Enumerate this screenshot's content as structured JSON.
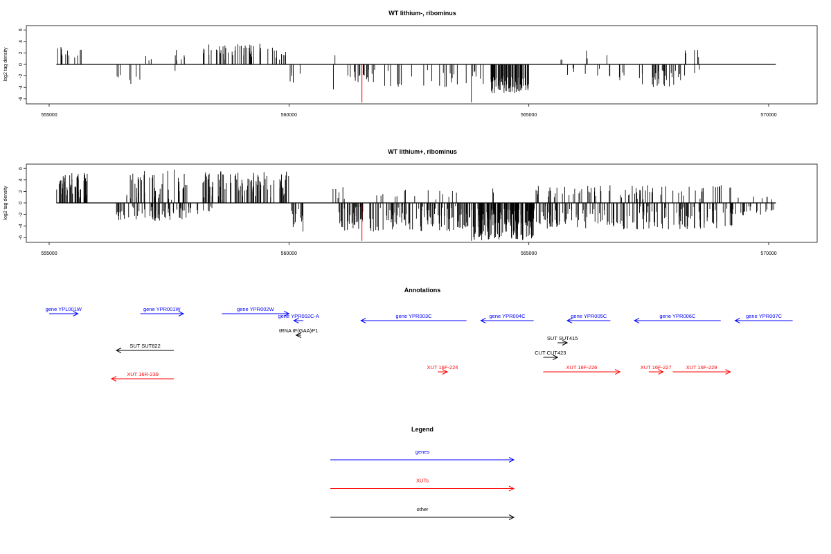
{
  "chart_data": [
    {
      "type": "bar",
      "title": "WT lithium-, ribominus",
      "ylabel": "log2 tag density",
      "xlim": [
        555000,
        570000
      ],
      "ylim": [
        -6,
        6
      ],
      "xticks": [
        "555000",
        "560000",
        "565000",
        "570000"
      ],
      "yticks": [
        "6",
        "4",
        "2",
        "0",
        "-2",
        "-4",
        "-6"
      ],
      "baseline_range": [
        555150,
        570150
      ],
      "highlight_color": "#ff0000",
      "highlights": [
        {
          "x": 561520,
          "y": -6.6
        },
        {
          "x": 563800,
          "y": -6.6
        }
      ],
      "clusters": [
        {
          "start": 555150,
          "end": 555300,
          "sign": 1,
          "min": 1.0,
          "max": 3.0,
          "count": 7
        },
        {
          "start": 555300,
          "end": 555700,
          "sign": 1,
          "min": 0.5,
          "max": 2.8,
          "count": 7
        },
        {
          "start": 556400,
          "end": 556500,
          "sign": -1,
          "min": 1.5,
          "max": 3.0,
          "count": 3
        },
        {
          "start": 556550,
          "end": 556900,
          "sign": -1,
          "min": 1.5,
          "max": 3.6,
          "count": 4
        },
        {
          "start": 556800,
          "end": 557200,
          "sign": 1,
          "min": 0.5,
          "max": 1.6,
          "count": 3
        },
        {
          "start": 557400,
          "end": 558000,
          "sign": 1,
          "min": 0.6,
          "max": 2.6,
          "count": 6
        },
        {
          "start": 557600,
          "end": 557700,
          "sign": -1,
          "min": 1.0,
          "max": 1.6,
          "count": 1
        },
        {
          "start": 558200,
          "end": 559700,
          "sign": 1,
          "min": 0.8,
          "max": 3.6,
          "count": 45
        },
        {
          "start": 559700,
          "end": 560000,
          "sign": 1,
          "min": 0.8,
          "max": 2.6,
          "count": 8
        },
        {
          "start": 560000,
          "end": 560250,
          "sign": -1,
          "min": 0.6,
          "max": 3.2,
          "count": 5
        },
        {
          "start": 560900,
          "end": 561000,
          "sign": 1,
          "min": 1.0,
          "max": 1.6,
          "count": 1
        },
        {
          "start": 560900,
          "end": 561000,
          "sign": -1,
          "min": 3.5,
          "max": 4.6,
          "count": 1
        },
        {
          "start": 561200,
          "end": 561800,
          "sign": -1,
          "min": 0.8,
          "max": 3.2,
          "count": 18
        },
        {
          "start": 561600,
          "end": 563900,
          "sign": -1,
          "min": 0.5,
          "max": 4.0,
          "count": 22
        },
        {
          "start": 563800,
          "end": 564200,
          "sign": -1,
          "min": 1.0,
          "max": 3.6,
          "count": 6
        },
        {
          "start": 564200,
          "end": 565000,
          "sign": -1,
          "min": 2.0,
          "max": 5.0,
          "count": 80
        },
        {
          "start": 565650,
          "end": 565700,
          "sign": 1,
          "min": 0.6,
          "max": 1.0,
          "count": 2
        },
        {
          "start": 565700,
          "end": 566500,
          "sign": -1,
          "min": 0.5,
          "max": 2.0,
          "count": 6
        },
        {
          "start": 566100,
          "end": 566800,
          "sign": 1,
          "min": 1.0,
          "max": 2.6,
          "count": 3
        },
        {
          "start": 566600,
          "end": 567000,
          "sign": -1,
          "min": 0.5,
          "max": 3.6,
          "count": 6
        },
        {
          "start": 567300,
          "end": 568200,
          "sign": -1,
          "min": 1.0,
          "max": 4.0,
          "count": 30
        },
        {
          "start": 568200,
          "end": 568600,
          "sign": 1,
          "min": 0.6,
          "max": 2.8,
          "count": 5
        },
        {
          "start": 568200,
          "end": 568650,
          "sign": -1,
          "min": 0.5,
          "max": 2.5,
          "count": 3
        }
      ]
    },
    {
      "type": "bar",
      "title": "WT lithium+, ribominus",
      "ylabel": "log2 tag density",
      "xlim": [
        555000,
        570000
      ],
      "ylim": [
        -6,
        6
      ],
      "xticks": [
        "555000",
        "560000",
        "565000",
        "570000"
      ],
      "yticks": [
        "6",
        "4",
        "2",
        "0",
        "-2",
        "-4",
        "-6"
      ],
      "baseline_range": [
        555150,
        570150
      ],
      "highlight_color": "#ff0000",
      "highlights": [
        {
          "x": 561520,
          "y": -6.6
        },
        {
          "x": 563800,
          "y": -6.6
        }
      ],
      "clusters": [
        {
          "start": 555150,
          "end": 555800,
          "sign": 1,
          "min": 0.5,
          "max": 5.2,
          "count": 55
        },
        {
          "start": 556400,
          "end": 557900,
          "sign": -1,
          "min": 0.5,
          "max": 3.2,
          "count": 60
        },
        {
          "start": 556600,
          "end": 557900,
          "sign": 1,
          "min": 0.5,
          "max": 6.0,
          "count": 45
        },
        {
          "start": 557900,
          "end": 558200,
          "sign": -1,
          "min": 0.5,
          "max": 2.0,
          "count": 6
        },
        {
          "start": 558200,
          "end": 560000,
          "sign": 1,
          "min": 0.5,
          "max": 5.6,
          "count": 90
        },
        {
          "start": 558100,
          "end": 558500,
          "sign": -1,
          "min": 0.5,
          "max": 1.5,
          "count": 5
        },
        {
          "start": 560000,
          "end": 560300,
          "sign": -1,
          "min": 0.5,
          "max": 5.2,
          "count": 12
        },
        {
          "start": 560800,
          "end": 561200,
          "sign": 1,
          "min": 0.5,
          "max": 3.0,
          "count": 6
        },
        {
          "start": 561000,
          "end": 563800,
          "sign": -1,
          "min": 0.5,
          "max": 5.0,
          "count": 150
        },
        {
          "start": 561800,
          "end": 563500,
          "sign": 1,
          "min": 0.5,
          "max": 2.5,
          "count": 15
        },
        {
          "start": 563800,
          "end": 565100,
          "sign": -1,
          "min": 1.0,
          "max": 6.5,
          "count": 160
        },
        {
          "start": 564200,
          "end": 564300,
          "sign": 1,
          "min": 1.5,
          "max": 2.8,
          "count": 2
        },
        {
          "start": 565100,
          "end": 569300,
          "sign": 1,
          "min": 0.5,
          "max": 3.2,
          "count": 75
        },
        {
          "start": 565100,
          "end": 569300,
          "sign": -1,
          "min": 0.5,
          "max": 4.6,
          "count": 150
        },
        {
          "start": 569300,
          "end": 570150,
          "sign": -1,
          "min": 0.5,
          "max": 2.2,
          "count": 18
        },
        {
          "start": 569300,
          "end": 570150,
          "sign": 1,
          "min": 0.5,
          "max": 1.2,
          "count": 6
        }
      ]
    }
  ],
  "annotations": {
    "title": "Annotations",
    "items": [
      {
        "label": "gene YPL001W",
        "color": "#0000ff",
        "dir": "right",
        "x1": 555000,
        "x2": 555600,
        "row": 1
      },
      {
        "label": "gene YPR001W",
        "color": "#0000ff",
        "dir": "right",
        "x1": 556900,
        "x2": 557800,
        "row": 1
      },
      {
        "label": "gene YPR002W",
        "color": "#0000ff",
        "dir": "right",
        "x1": 558600,
        "x2": 560000,
        "row": 1
      },
      {
        "label": "gene YPR002C-A",
        "color": "#0000ff",
        "dir": "left",
        "x1": 560100,
        "x2": 560300,
        "row": 2
      },
      {
        "label": "gene YPR003C",
        "color": "#0000ff",
        "dir": "left",
        "x1": 561500,
        "x2": 563700,
        "row": 2
      },
      {
        "label": "gene YPR004C",
        "color": "#0000ff",
        "dir": "left",
        "x1": 564000,
        "x2": 565100,
        "row": 2
      },
      {
        "label": "gene YPR005C",
        "color": "#0000ff",
        "dir": "left",
        "x1": 565800,
        "x2": 566700,
        "row": 2
      },
      {
        "label": "gene YPR006C",
        "color": "#0000ff",
        "dir": "left",
        "x1": 567200,
        "x2": 569000,
        "row": 2
      },
      {
        "label": "gene YPR007C",
        "color": "#0000ff",
        "dir": "left",
        "x1": 569300,
        "x2": 570500,
        "row": 2
      },
      {
        "label": "tRNA tF(GAA)P1",
        "color": "#000000",
        "dir": "left",
        "x1": 560150,
        "x2": 560250,
        "row": 3
      },
      {
        "label": "SUT SUT822",
        "color": "#000000",
        "dir": "left",
        "x1": 556400,
        "x2": 557600,
        "row": 4
      },
      {
        "label": "SUT SUT415",
        "color": "#000000",
        "dir": "right",
        "x1": 565600,
        "x2": 565800,
        "row": 5
      },
      {
        "label": "CUT CUT423",
        "color": "#000000",
        "dir": "right",
        "x1": 565300,
        "x2": 565600,
        "row": 6
      },
      {
        "label": "XUT 16F-224",
        "color": "#ff0000",
        "dir": "right",
        "x1": 563100,
        "x2": 563300,
        "row": 7
      },
      {
        "label": "XUT 16F-226",
        "color": "#ff0000",
        "dir": "right",
        "x1": 565300,
        "x2": 566900,
        "row": 7
      },
      {
        "label": "XUT 16F-227",
        "color": "#ff0000",
        "dir": "right",
        "x1": 567500,
        "x2": 567800,
        "row": 7
      },
      {
        "label": "XUT 16F-229",
        "color": "#ff0000",
        "dir": "right",
        "x1": 568000,
        "x2": 569200,
        "row": 7
      },
      {
        "label": "XUT 16R-239",
        "color": "#ff0000",
        "dir": "left",
        "x1": 556300,
        "x2": 557600,
        "row": 8
      }
    ]
  },
  "legend": {
    "title": "Legend",
    "items": [
      {
        "label": "genes",
        "color": "#0000ff"
      },
      {
        "label": "XUTs",
        "color": "#ff0000"
      },
      {
        "label": "other",
        "color": "#000000"
      }
    ]
  }
}
